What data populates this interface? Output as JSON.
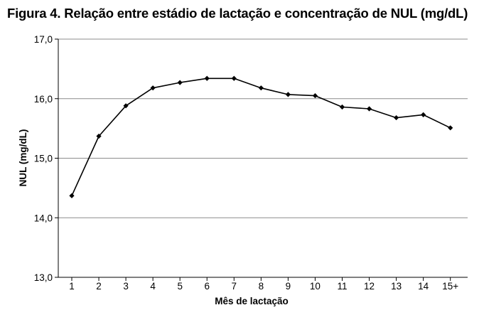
{
  "chart_data": {
    "type": "line",
    "title": "Figura 4. Relação entre estádio de lactação e concentração de NUL (mg/dL)",
    "xlabel": "Mês de lactação",
    "ylabel": "NUL (mg/dL)",
    "categories": [
      "1",
      "2",
      "3",
      "4",
      "5",
      "6",
      "7",
      "8",
      "9",
      "10",
      "11",
      "12",
      "13",
      "14",
      "15+"
    ],
    "series": [
      {
        "values": [
          14.37,
          15.37,
          15.88,
          16.18,
          16.27,
          16.34,
          16.34,
          16.18,
          16.07,
          16.05,
          15.86,
          15.83,
          15.68,
          15.73,
          15.51
        ]
      }
    ],
    "ylim": [
      13.0,
      17.0
    ],
    "yticks": [
      13.0,
      14.0,
      15.0,
      16.0,
      17.0
    ],
    "ytick_labels": [
      "13,0",
      "14,0",
      "15,0",
      "16,0",
      "17,0"
    ],
    "grid": true,
    "colors": {
      "line": "#000000",
      "grid": "#8c8c8c",
      "axis": "#000000"
    }
  }
}
